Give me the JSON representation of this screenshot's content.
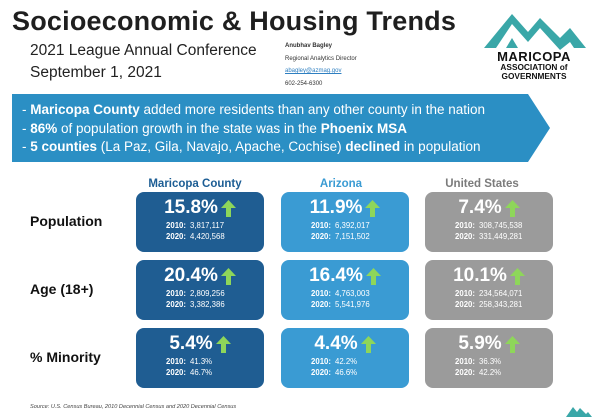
{
  "header": {
    "title": "Socioeconomic & Housing Trends",
    "subtitle_line1": "2021 League Annual Conference",
    "subtitle_line2": "September 1, 2021"
  },
  "contact": {
    "name": "Anubhav Bagley",
    "role": "Regional Analytics Director",
    "email": "abagley@azmag.gov",
    "phone": "602-254-6300"
  },
  "logo": {
    "line1": "MARICOPA",
    "line2": "ASSOCIATION of",
    "line3": "GOVERNMENTS",
    "color": "#3aa7a8"
  },
  "banner": {
    "color": "#2b8fc4",
    "line1_bold": "Maricopa County",
    "line1_rest": " added more residents than any other county in the nation",
    "line2_bold": "86%",
    "line2_mid": " of population growth in the state was in the ",
    "line2_bold2": "Phoenix MSA",
    "line3_bold": "5 counties",
    "line3_mid": " (La Paz, Gila, Navajo, Apache, Cochise) ",
    "line3_bold2": "declined",
    "line3_rest": " in population"
  },
  "columns": [
    "Maricopa County",
    "Arizona",
    "United States"
  ],
  "rows": [
    "Population",
    "Age (18+)",
    "% Minority"
  ],
  "year_labels": {
    "y2010": "2010:",
    "y2020": "2020:"
  },
  "cells": {
    "population": {
      "maricopa": {
        "pct": "15.8%",
        "v2010": "3,817,117",
        "v2020": "4,420,568"
      },
      "arizona": {
        "pct": "11.9%",
        "v2010": "6,392,017",
        "v2020": "7,151,502"
      },
      "us": {
        "pct": "7.4%",
        "v2010": "308,745,538",
        "v2020": "331,449,281"
      }
    },
    "age": {
      "maricopa": {
        "pct": "20.4%",
        "v2010": "2,809,256",
        "v2020": "3,382,386"
      },
      "arizona": {
        "pct": "16.4%",
        "v2010": "4,763,003",
        "v2020": "5,541,976"
      },
      "us": {
        "pct": "10.1%",
        "v2010": "234,564,071",
        "v2020": "258,343,281"
      }
    },
    "minority": {
      "maricopa": {
        "pct": "5.4%",
        "v2010": "41.3%",
        "v2020": "46.7%"
      },
      "arizona": {
        "pct": "4.4%",
        "v2010": "42.2%",
        "v2020": "46.6%"
      },
      "us": {
        "pct": "5.9%",
        "v2010": "36.3%",
        "v2020": "42.2%"
      }
    }
  },
  "colors": {
    "maricopa": "#1f5d92",
    "arizona": "#3a9bd3",
    "us": "#9b9b9b",
    "arrow": "#8ed65a"
  },
  "source": "Source: U.S. Census Bureau, 2010 Decennial Census and 2020 Decennial Census"
}
